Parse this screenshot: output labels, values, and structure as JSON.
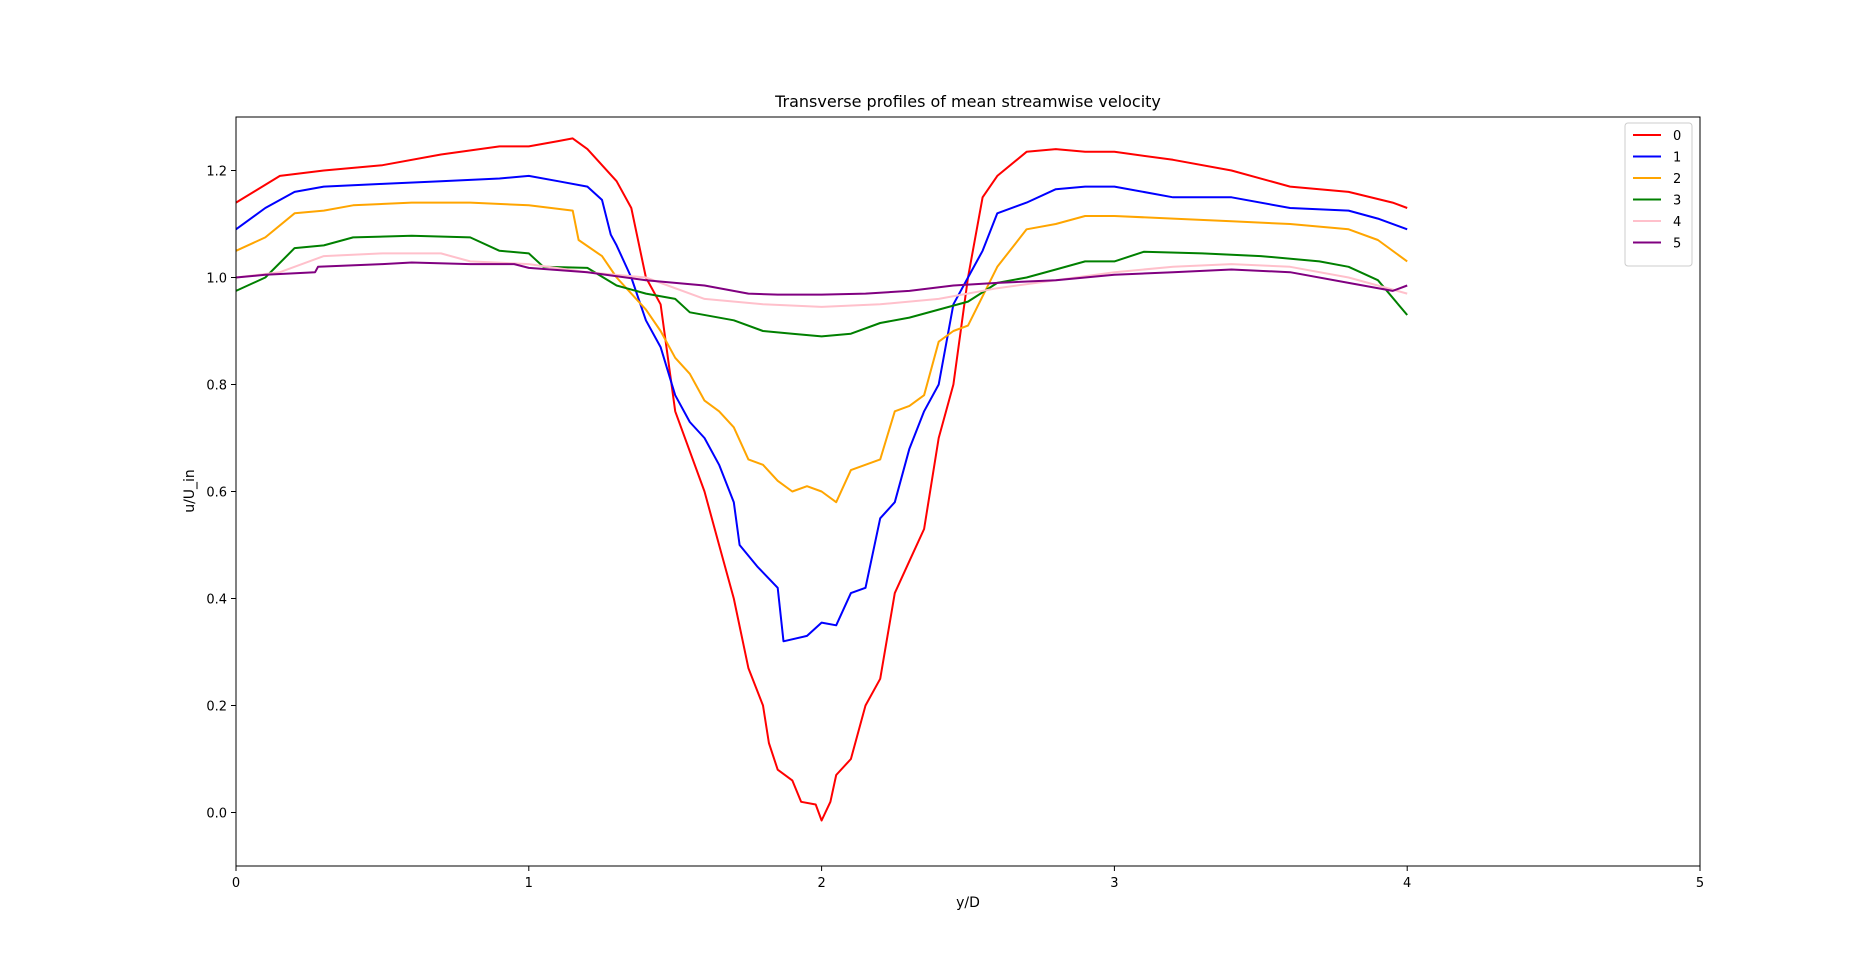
{
  "chart_data": {
    "type": "line",
    "title": "Transverse profiles of mean streamwise velocity",
    "xlabel": "y/D",
    "ylabel": "u/U_in",
    "xlim": [
      0,
      5
    ],
    "ylim": [
      -0.1,
      1.3
    ],
    "xticks": [
      0,
      1,
      2,
      3,
      4,
      5
    ],
    "yticks": [
      0.0,
      0.2,
      0.4,
      0.6,
      0.8,
      1.0,
      1.2
    ],
    "grid": false,
    "legend_position": "top-right",
    "series": [
      {
        "name": "0",
        "color": "#ff0000",
        "points": [
          [
            0,
            1.14
          ],
          [
            0.15,
            1.19
          ],
          [
            0.3,
            1.2
          ],
          [
            0.5,
            1.21
          ],
          [
            0.7,
            1.23
          ],
          [
            0.9,
            1.245
          ],
          [
            1.0,
            1.245
          ],
          [
            1.1,
            1.255
          ],
          [
            1.15,
            1.26
          ],
          [
            1.2,
            1.24
          ],
          [
            1.3,
            1.18
          ],
          [
            1.35,
            1.13
          ],
          [
            1.4,
            1.0
          ],
          [
            1.45,
            0.95
          ],
          [
            1.5,
            0.75
          ],
          [
            1.6,
            0.6
          ],
          [
            1.65,
            0.5
          ],
          [
            1.7,
            0.4
          ],
          [
            1.75,
            0.27
          ],
          [
            1.8,
            0.2
          ],
          [
            1.82,
            0.13
          ],
          [
            1.85,
            0.08
          ],
          [
            1.9,
            0.06
          ],
          [
            1.93,
            0.02
          ],
          [
            1.98,
            0.015
          ],
          [
            2.0,
            -0.015
          ],
          [
            2.03,
            0.02
          ],
          [
            2.05,
            0.07
          ],
          [
            2.1,
            0.1
          ],
          [
            2.15,
            0.2
          ],
          [
            2.2,
            0.25
          ],
          [
            2.25,
            0.41
          ],
          [
            2.3,
            0.47
          ],
          [
            2.35,
            0.53
          ],
          [
            2.4,
            0.7
          ],
          [
            2.45,
            0.8
          ],
          [
            2.5,
            1.0
          ],
          [
            2.55,
            1.15
          ],
          [
            2.6,
            1.19
          ],
          [
            2.7,
            1.235
          ],
          [
            2.8,
            1.24
          ],
          [
            2.9,
            1.235
          ],
          [
            3.0,
            1.235
          ],
          [
            3.2,
            1.22
          ],
          [
            3.4,
            1.2
          ],
          [
            3.6,
            1.17
          ],
          [
            3.8,
            1.16
          ],
          [
            3.95,
            1.14
          ],
          [
            4.0,
            1.13
          ]
        ]
      },
      {
        "name": "1",
        "color": "#0000ff",
        "points": [
          [
            0,
            1.09
          ],
          [
            0.1,
            1.13
          ],
          [
            0.2,
            1.16
          ],
          [
            0.3,
            1.17
          ],
          [
            0.5,
            1.175
          ],
          [
            0.7,
            1.18
          ],
          [
            0.9,
            1.185
          ],
          [
            1.0,
            1.19
          ],
          [
            1.1,
            1.18
          ],
          [
            1.2,
            1.17
          ],
          [
            1.25,
            1.145
          ],
          [
            1.28,
            1.08
          ],
          [
            1.3,
            1.06
          ],
          [
            1.35,
            1.0
          ],
          [
            1.4,
            0.92
          ],
          [
            1.45,
            0.87
          ],
          [
            1.5,
            0.78
          ],
          [
            1.55,
            0.73
          ],
          [
            1.6,
            0.7
          ],
          [
            1.65,
            0.65
          ],
          [
            1.7,
            0.58
          ],
          [
            1.72,
            0.5
          ],
          [
            1.78,
            0.46
          ],
          [
            1.85,
            0.42
          ],
          [
            1.87,
            0.32
          ],
          [
            1.95,
            0.33
          ],
          [
            2.0,
            0.355
          ],
          [
            2.05,
            0.35
          ],
          [
            2.1,
            0.41
          ],
          [
            2.15,
            0.42
          ],
          [
            2.2,
            0.55
          ],
          [
            2.25,
            0.58
          ],
          [
            2.3,
            0.68
          ],
          [
            2.35,
            0.75
          ],
          [
            2.4,
            0.8
          ],
          [
            2.45,
            0.95
          ],
          [
            2.5,
            1.0
          ],
          [
            2.55,
            1.05
          ],
          [
            2.6,
            1.12
          ],
          [
            2.7,
            1.14
          ],
          [
            2.8,
            1.165
          ],
          [
            2.9,
            1.17
          ],
          [
            3.0,
            1.17
          ],
          [
            3.2,
            1.15
          ],
          [
            3.4,
            1.15
          ],
          [
            3.6,
            1.13
          ],
          [
            3.8,
            1.125
          ],
          [
            3.9,
            1.11
          ],
          [
            4.0,
            1.09
          ]
        ]
      },
      {
        "name": "2",
        "color": "#ffa500",
        "points": [
          [
            0,
            1.05
          ],
          [
            0.1,
            1.075
          ],
          [
            0.2,
            1.12
          ],
          [
            0.3,
            1.125
          ],
          [
            0.4,
            1.135
          ],
          [
            0.6,
            1.14
          ],
          [
            0.8,
            1.14
          ],
          [
            1.0,
            1.135
          ],
          [
            1.15,
            1.125
          ],
          [
            1.17,
            1.07
          ],
          [
            1.25,
            1.04
          ],
          [
            1.3,
            1.0
          ],
          [
            1.35,
            0.97
          ],
          [
            1.4,
            0.94
          ],
          [
            1.45,
            0.9
          ],
          [
            1.5,
            0.85
          ],
          [
            1.55,
            0.82
          ],
          [
            1.6,
            0.77
          ],
          [
            1.65,
            0.75
          ],
          [
            1.7,
            0.72
          ],
          [
            1.75,
            0.66
          ],
          [
            1.8,
            0.65
          ],
          [
            1.85,
            0.62
          ],
          [
            1.9,
            0.6
          ],
          [
            1.95,
            0.61
          ],
          [
            2.0,
            0.6
          ],
          [
            2.05,
            0.58
          ],
          [
            2.1,
            0.64
          ],
          [
            2.2,
            0.66
          ],
          [
            2.25,
            0.75
          ],
          [
            2.3,
            0.76
          ],
          [
            2.35,
            0.78
          ],
          [
            2.4,
            0.88
          ],
          [
            2.45,
            0.9
          ],
          [
            2.5,
            0.91
          ],
          [
            2.6,
            1.02
          ],
          [
            2.7,
            1.09
          ],
          [
            2.8,
            1.1
          ],
          [
            2.9,
            1.115
          ],
          [
            3.0,
            1.115
          ],
          [
            3.2,
            1.11
          ],
          [
            3.4,
            1.105
          ],
          [
            3.6,
            1.1
          ],
          [
            3.8,
            1.09
          ],
          [
            3.9,
            1.07
          ],
          [
            4.0,
            1.03
          ]
        ]
      },
      {
        "name": "3",
        "color": "#008000",
        "points": [
          [
            0,
            0.975
          ],
          [
            0.1,
            1.0
          ],
          [
            0.2,
            1.055
          ],
          [
            0.3,
            1.06
          ],
          [
            0.4,
            1.075
          ],
          [
            0.6,
            1.078
          ],
          [
            0.8,
            1.075
          ],
          [
            0.9,
            1.05
          ],
          [
            1.0,
            1.045
          ],
          [
            1.05,
            1.02
          ],
          [
            1.2,
            1.018
          ],
          [
            1.3,
            0.985
          ],
          [
            1.4,
            0.97
          ],
          [
            1.5,
            0.96
          ],
          [
            1.55,
            0.935
          ],
          [
            1.7,
            0.92
          ],
          [
            1.8,
            0.9
          ],
          [
            1.9,
            0.895
          ],
          [
            2.0,
            0.89
          ],
          [
            2.1,
            0.895
          ],
          [
            2.2,
            0.915
          ],
          [
            2.3,
            0.925
          ],
          [
            2.4,
            0.94
          ],
          [
            2.5,
            0.955
          ],
          [
            2.6,
            0.99
          ],
          [
            2.7,
            1.0
          ],
          [
            2.8,
            1.015
          ],
          [
            2.9,
            1.03
          ],
          [
            3.0,
            1.03
          ],
          [
            3.1,
            1.048
          ],
          [
            3.3,
            1.045
          ],
          [
            3.5,
            1.04
          ],
          [
            3.7,
            1.03
          ],
          [
            3.8,
            1.02
          ],
          [
            3.9,
            0.995
          ],
          [
            4.0,
            0.93
          ]
        ]
      },
      {
        "name": "4",
        "color": "#ffc0cb",
        "points": [
          [
            0,
            1.0
          ],
          [
            0.15,
            1.01
          ],
          [
            0.3,
            1.04
          ],
          [
            0.5,
            1.045
          ],
          [
            0.7,
            1.045
          ],
          [
            0.8,
            1.03
          ],
          [
            1.0,
            1.025
          ],
          [
            1.2,
            1.01
          ],
          [
            1.4,
            1.0
          ],
          [
            1.6,
            0.96
          ],
          [
            1.8,
            0.95
          ],
          [
            2.0,
            0.945
          ],
          [
            2.2,
            0.95
          ],
          [
            2.4,
            0.96
          ],
          [
            2.6,
            0.98
          ],
          [
            2.8,
            0.995
          ],
          [
            3.0,
            1.01
          ],
          [
            3.2,
            1.02
          ],
          [
            3.4,
            1.025
          ],
          [
            3.6,
            1.02
          ],
          [
            3.8,
            1.0
          ],
          [
            4.0,
            0.97
          ]
        ]
      },
      {
        "name": "5",
        "color": "#800080",
        "points": [
          [
            0,
            1.0
          ],
          [
            0.1,
            1.005
          ],
          [
            0.27,
            1.01
          ],
          [
            0.28,
            1.02
          ],
          [
            0.5,
            1.025
          ],
          [
            0.6,
            1.028
          ],
          [
            0.8,
            1.025
          ],
          [
            0.95,
            1.025
          ],
          [
            1.0,
            1.018
          ],
          [
            1.2,
            1.01
          ],
          [
            1.4,
            0.995
          ],
          [
            1.6,
            0.985
          ],
          [
            1.75,
            0.97
          ],
          [
            1.85,
            0.968
          ],
          [
            2.0,
            0.968
          ],
          [
            2.15,
            0.97
          ],
          [
            2.3,
            0.975
          ],
          [
            2.45,
            0.985
          ],
          [
            2.6,
            0.99
          ],
          [
            2.8,
            0.995
          ],
          [
            3.0,
            1.005
          ],
          [
            3.2,
            1.01
          ],
          [
            3.4,
            1.015
          ],
          [
            3.6,
            1.01
          ],
          [
            3.8,
            0.99
          ],
          [
            3.95,
            0.975
          ],
          [
            4.0,
            0.985
          ]
        ]
      }
    ]
  }
}
